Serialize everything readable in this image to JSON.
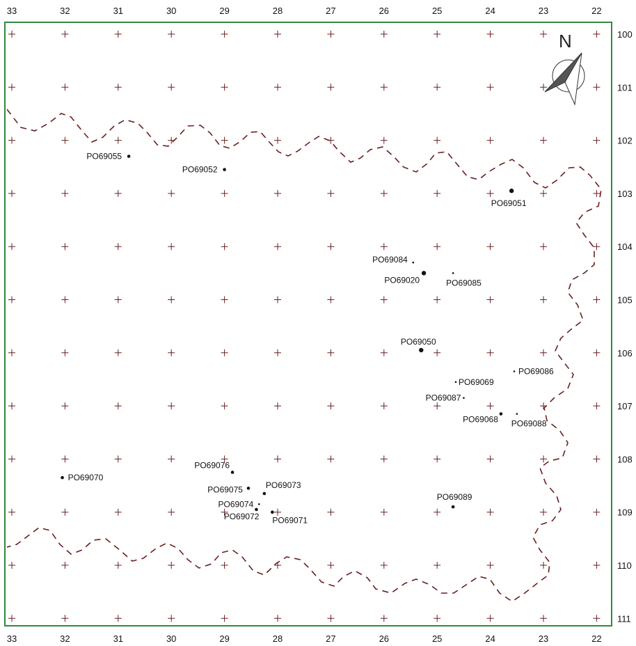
{
  "map": {
    "north_label": "N",
    "colors": {
      "frame": "#2e8b3e",
      "grid_cross": "#6b1e1e",
      "boundary": "#6b1e1e",
      "point": "#111111",
      "text": "#111111"
    },
    "x_axis": {
      "min": 22,
      "max": 33,
      "reversed": true,
      "ticks": [
        "33",
        "32",
        "31",
        "30",
        "29",
        "28",
        "27",
        "26",
        "25",
        "24",
        "23",
        "22"
      ]
    },
    "y_axis": {
      "min": 100,
      "max": 111,
      "reversed": false,
      "ticks": [
        "100",
        "101",
        "102",
        "103",
        "104",
        "105",
        "106",
        "107",
        "108",
        "109",
        "110",
        "111"
      ]
    },
    "points": [
      {
        "label": "PO69055",
        "x": 30.8,
        "y": 102.3,
        "size": "small"
      },
      {
        "label": "PO69052",
        "x": 29.0,
        "y": 102.55,
        "size": "small"
      },
      {
        "label": "PO69051",
        "x": 23.6,
        "y": 102.95,
        "size": "medium"
      },
      {
        "label": "PO69084",
        "x": 25.45,
        "y": 104.3,
        "size": "tiny"
      },
      {
        "label": "PO69020",
        "x": 25.25,
        "y": 104.5,
        "size": "medium"
      },
      {
        "label": "PO69085",
        "x": 24.7,
        "y": 104.5,
        "size": "tiny"
      },
      {
        "label": "PO69050",
        "x": 25.3,
        "y": 105.95,
        "size": "medium"
      },
      {
        "label": "PO69086",
        "x": 23.55,
        "y": 106.35,
        "size": "tiny"
      },
      {
        "label": "PO69069",
        "x": 24.65,
        "y": 106.55,
        "size": "tiny"
      },
      {
        "label": "PO69087",
        "x": 24.5,
        "y": 106.85,
        "size": "tiny"
      },
      {
        "label": "PO69068",
        "x": 23.8,
        "y": 107.15,
        "size": "small"
      },
      {
        "label": "PO69088",
        "x": 23.5,
        "y": 107.15,
        "size": "tiny"
      },
      {
        "label": "PO69076",
        "x": 28.85,
        "y": 108.25,
        "size": "small"
      },
      {
        "label": "PO69070",
        "x": 32.05,
        "y": 108.35,
        "size": "small"
      },
      {
        "label": "PO69075",
        "x": 28.55,
        "y": 108.55,
        "size": "small"
      },
      {
        "label": "PO69073",
        "x": 28.25,
        "y": 108.65,
        "size": "small"
      },
      {
        "label": "PO69074",
        "x": 28.35,
        "y": 108.85,
        "size": "tiny"
      },
      {
        "label": "PO69072",
        "x": 28.4,
        "y": 108.95,
        "size": "small"
      },
      {
        "label": "PO69071",
        "x": 28.1,
        "y": 109.0,
        "size": "small"
      },
      {
        "label": "PO69089",
        "x": 24.7,
        "y": 108.9,
        "size": "small"
      }
    ]
  }
}
